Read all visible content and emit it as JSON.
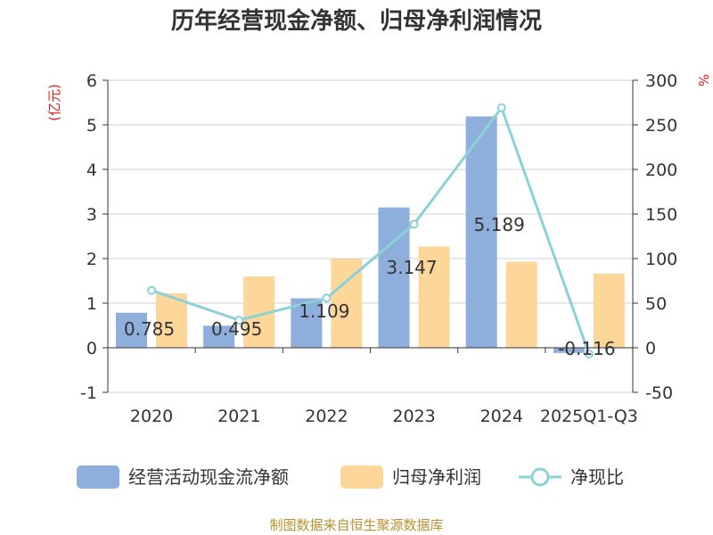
{
  "chart_data": {
    "type": "bar",
    "title": "历年经营现金净额、归母净利润情况",
    "categories": [
      "2020",
      "2021",
      "2022",
      "2023",
      "2024",
      "2025Q1-Q3"
    ],
    "left_axis": {
      "unit": "(亿元)",
      "min": -1,
      "max": 6,
      "ticks": [
        "-1",
        "0",
        "1",
        "2",
        "3",
        "4",
        "5",
        "6"
      ]
    },
    "right_axis": {
      "unit": "%",
      "min": -50,
      "max": 300,
      "ticks": [
        "-50",
        "0",
        "50",
        "100",
        "150",
        "200",
        "250",
        "300"
      ]
    },
    "series": [
      {
        "name": "经营活动现金流净额",
        "type": "bar",
        "axis": "left",
        "color": "#8eaedb",
        "values": [
          0.785,
          0.495,
          1.109,
          3.147,
          5.189,
          -0.116
        ],
        "labels": [
          "0.785",
          "0.495",
          "1.109",
          "3.147",
          "5.189",
          "-0.116"
        ]
      },
      {
        "name": "归母净利润",
        "type": "bar",
        "axis": "left",
        "color": "#fdd79a",
        "values": [
          1.22,
          1.6,
          1.99,
          2.27,
          1.93,
          1.66
        ]
      },
      {
        "name": "净现比",
        "type": "line",
        "axis": "right",
        "color": "#8ad2d8",
        "values": [
          64.3,
          30.9,
          55.7,
          138.6,
          269.1,
          -7.0
        ]
      }
    ],
    "grid": true,
    "legend_position": "bottom"
  },
  "source": "制图数据来自恒生聚源数据库"
}
